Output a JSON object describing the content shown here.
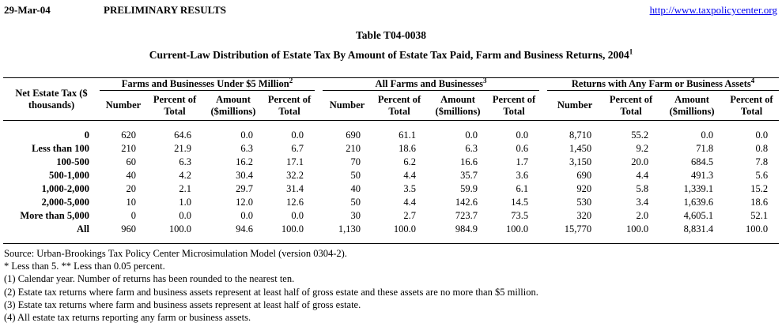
{
  "header": {
    "date": "29-Mar-04",
    "status": "PRELIMINARY RESULTS",
    "link": "http://www.taxpolicycenter.org"
  },
  "title": "Table T04-0038",
  "subtitle": {
    "text": "Current-Law Distribution of Estate Tax By Amount of Estate Tax Paid, Farm and Business Returns, 2004",
    "note": "1"
  },
  "table": {
    "row_header": "Net Estate Tax ($ thousands)",
    "groups": [
      {
        "label": "Farms and Businesses Under $5 Million",
        "note": "2"
      },
      {
        "label": "All Farms and Businesses",
        "note": "3"
      },
      {
        "label": "Returns with Any Farm or Business Assets",
        "note": "4"
      }
    ],
    "subheaders": [
      "Number",
      "Percent of Total",
      "Amount ($millions)",
      "Percent of Total"
    ],
    "rows": [
      {
        "label": "0",
        "groups": [
          [
            "620",
            "64.6",
            "0.0",
            "0.0"
          ],
          [
            "690",
            "61.1",
            "0.0",
            "0.0"
          ],
          [
            "8,710",
            "55.2",
            "0.0",
            "0.0"
          ]
        ]
      },
      {
        "label": "Less than 100",
        "groups": [
          [
            "210",
            "21.9",
            "6.3",
            "6.7"
          ],
          [
            "210",
            "18.6",
            "6.3",
            "0.6"
          ],
          [
            "1,450",
            "9.2",
            "71.8",
            "0.8"
          ]
        ]
      },
      {
        "label": "100-500",
        "groups": [
          [
            "60",
            "6.3",
            "16.2",
            "17.1"
          ],
          [
            "70",
            "6.2",
            "16.6",
            "1.7"
          ],
          [
            "3,150",
            "20.0",
            "684.5",
            "7.8"
          ]
        ]
      },
      {
        "label": "500-1,000",
        "groups": [
          [
            "40",
            "4.2",
            "30.4",
            "32.2"
          ],
          [
            "50",
            "4.4",
            "35.7",
            "3.6"
          ],
          [
            "690",
            "4.4",
            "491.3",
            "5.6"
          ]
        ]
      },
      {
        "label": "1,000-2,000",
        "groups": [
          [
            "20",
            "2.1",
            "29.7",
            "31.4"
          ],
          [
            "40",
            "3.5",
            "59.9",
            "6.1"
          ],
          [
            "920",
            "5.8",
            "1,339.1",
            "15.2"
          ]
        ]
      },
      {
        "label": "2,000-5,000",
        "groups": [
          [
            "10",
            "1.0",
            "12.0",
            "12.6"
          ],
          [
            "50",
            "4.4",
            "142.6",
            "14.5"
          ],
          [
            "530",
            "3.4",
            "1,639.6",
            "18.6"
          ]
        ]
      },
      {
        "label": "More than 5,000",
        "groups": [
          [
            "0",
            "0.0",
            "0.0",
            "0.0"
          ],
          [
            "30",
            "2.7",
            "723.7",
            "73.5"
          ],
          [
            "320",
            "2.0",
            "4,605.1",
            "52.1"
          ]
        ]
      },
      {
        "label": "All",
        "groups": [
          [
            "960",
            "100.0",
            "94.6",
            "100.0"
          ],
          [
            "1,130",
            "100.0",
            "984.9",
            "100.0"
          ],
          [
            "15,770",
            "100.0",
            "8,831.4",
            "100.0"
          ]
        ]
      }
    ]
  },
  "footnotes": [
    "Source: Urban-Brookings Tax Policy Center Microsimulation Model (version 0304-2).",
    "* Less than 5. ** Less than 0.05 percent.",
    "(1) Calendar year. Number of returns has been rounded to the nearest ten.",
    "(2) Estate tax returns where farm and business assets represent at least half of gross estate and these assets are no more than $5 million.",
    "(3) Estate tax returns where farm and business assets represent at least half of gross estate.",
    "(4) All estate tax returns reporting any farm or business assets."
  ]
}
